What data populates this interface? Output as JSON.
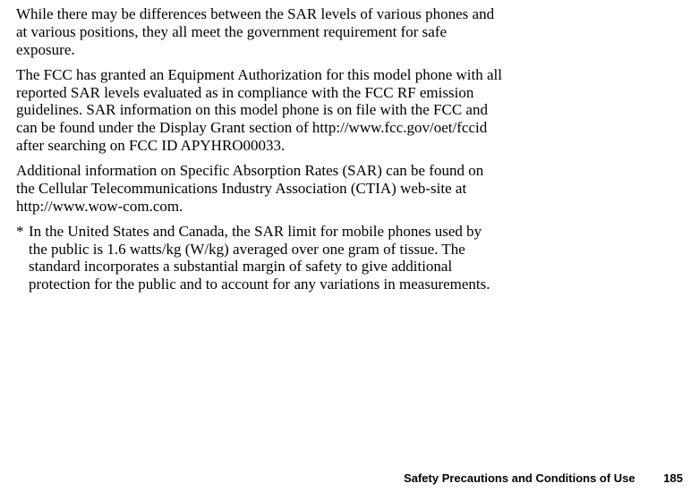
{
  "paragraphs": {
    "p1": "While there may be differences between the SAR levels of various phones and at various positions, they all meet the government requirement for safe exposure.",
    "p2": "The FCC has granted an Equipment Authorization for this model phone with all reported SAR levels evaluated as in compliance with the FCC RF emission guidelines. SAR information on this model phone is on file with the FCC and can be found under the Display Grant section of http://www.fcc.gov/oet/fccid after searching on FCC ID APYHRO00033.",
    "p3": "Additional information on Specific Absorption Rates (SAR) can be found on the Cellular Telecommunications Industry Association (CTIA) web-site at http://www.wow-com.com.",
    "footnote_marker": "*",
    "footnote": "In the United States and Canada, the SAR limit for mobile phones used by the public is 1.6 watts/kg (W/kg) averaged over one gram of tissue. The standard incorporates a substantial margin of safety to give additional protection for the public and to account for any variations in measurements."
  },
  "footer": {
    "title": "Safety Precautions and Conditions of Use",
    "page_number": "185"
  }
}
